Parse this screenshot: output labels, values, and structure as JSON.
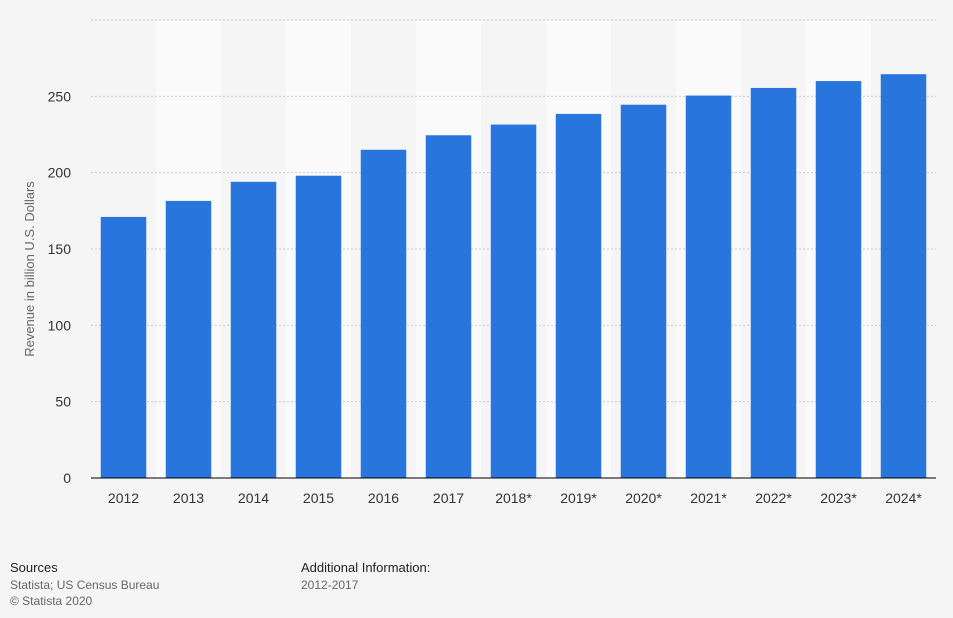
{
  "chart_data": {
    "type": "bar",
    "title": "",
    "xlabel": "",
    "ylabel": "Revenue in billion U.S. Dollars",
    "categories": [
      "2012",
      "2013",
      "2014",
      "2015",
      "2016",
      "2017",
      "2018*",
      "2019*",
      "2020*",
      "2021*",
      "2022*",
      "2023*",
      "2024*"
    ],
    "values": [
      171,
      181.5,
      194,
      198,
      215,
      224.5,
      231.5,
      238.5,
      244.5,
      250.5,
      255.5,
      260,
      264.5
    ],
    "ylim": [
      0,
      300
    ],
    "yticks": [
      0,
      50,
      100,
      150,
      200,
      250
    ],
    "grid": true,
    "colors": {
      "bar": "#2876dd",
      "grid": "#cccccc",
      "band": "#fafafa",
      "axis": "#000000"
    }
  },
  "footer": {
    "sources_title": "Sources",
    "sources_line1": "Statista; US Census Bureau",
    "sources_line2": "© Statista 2020",
    "info_title": "Additional Information:",
    "info_line1": "2012-2017"
  }
}
